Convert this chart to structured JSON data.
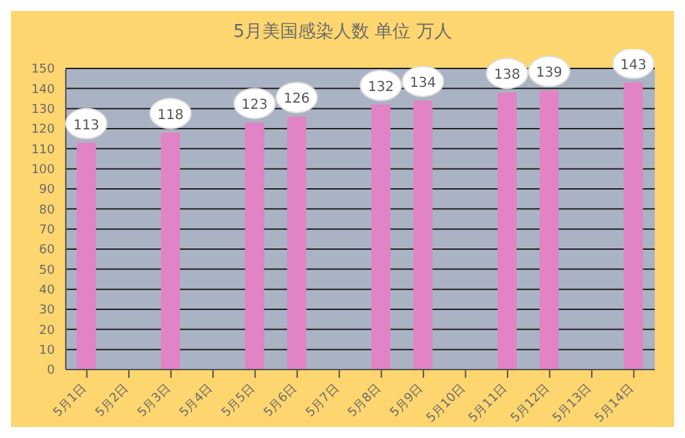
{
  "chart_data": {
    "type": "bar",
    "title": "5月美国感染人数 单位 万人",
    "categories": [
      "5月1日",
      "5月2日",
      "5月3日",
      "5月4日",
      "5月5日",
      "5月6日",
      "5月7日",
      "5月8日",
      "5月9日",
      "5月10日",
      "5月11日",
      "5月12日",
      "5月13日",
      "5月14日"
    ],
    "values": [
      113,
      null,
      118,
      null,
      123,
      126,
      null,
      132,
      134,
      null,
      138,
      139,
      null,
      143
    ],
    "color": "#e183c4",
    "ylim": [
      0,
      150
    ],
    "yticks": [
      0,
      10,
      20,
      30,
      40,
      50,
      60,
      70,
      80,
      90,
      100,
      110,
      120,
      130,
      140,
      150
    ],
    "grid": "y",
    "data_labels": true
  }
}
